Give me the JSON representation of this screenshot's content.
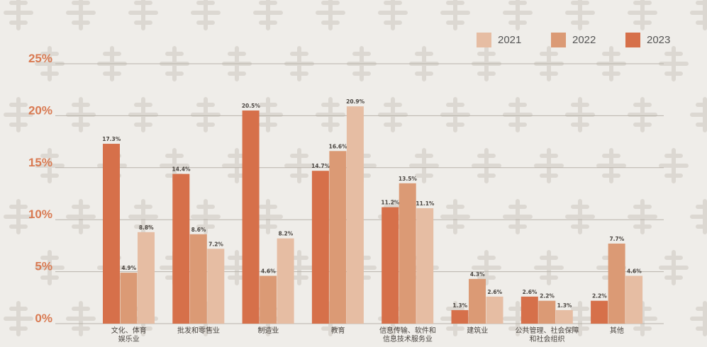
{
  "colors": {
    "2021": "#e6bda3",
    "2022": "#db9a75",
    "2023": "#d6704a",
    "axis_text": "#d97a52",
    "grid": "#b9b3ab",
    "label": "#4a4540",
    "watermark": "#dcd8d2"
  },
  "legend": [
    {
      "label": "2021",
      "color": "#e6bda3"
    },
    {
      "label": "2022",
      "color": "#db9a75"
    },
    {
      "label": "2023",
      "color": "#d6704a"
    }
  ],
  "chart_data": {
    "type": "bar",
    "title": "",
    "xlabel": "",
    "ylabel": "",
    "ylim": [
      0,
      25
    ],
    "yticks": [
      "0%",
      "5%",
      "10%",
      "15%",
      "20%",
      "25%"
    ],
    "grid": true,
    "legend_position": "top-right",
    "categories": [
      [
        "文化、体育",
        "娱乐业"
      ],
      [
        "批发和零售业"
      ],
      [
        "制造业"
      ],
      [
        "教育"
      ],
      [
        "信息传输、软件和",
        "信息技术服务业"
      ],
      [
        "建筑业"
      ],
      [
        "公共管理、社会保障",
        "和社会组织"
      ],
      [
        "其他"
      ]
    ],
    "series": [
      {
        "name": "2023",
        "values": [
          17.3,
          14.4,
          20.5,
          14.7,
          11.2,
          1.3,
          2.6,
          2.2
        ],
        "labels": [
          "17.3%",
          "14.4%",
          "20.5%",
          "14.7%",
          "11.2%",
          "1.3%",
          "2.6%",
          "2.2%"
        ]
      },
      {
        "name": "2022",
        "values": [
          4.9,
          8.6,
          4.6,
          16.6,
          13.5,
          4.3,
          2.2,
          7.7
        ],
        "labels": [
          "4.9%",
          "8.6%",
          "4.6%",
          "16.6%",
          "13.5%",
          "4.3%",
          "2.2%",
          "7.7%"
        ]
      },
      {
        "name": "2021",
        "values": [
          8.8,
          7.2,
          8.2,
          20.9,
          11.1,
          2.6,
          1.3,
          4.6
        ],
        "labels": [
          "8.8%",
          "7.2%",
          "8.2%",
          "20.9%",
          "11.1%",
          "2.6%",
          "1.3%",
          "4.6%"
        ]
      }
    ]
  }
}
